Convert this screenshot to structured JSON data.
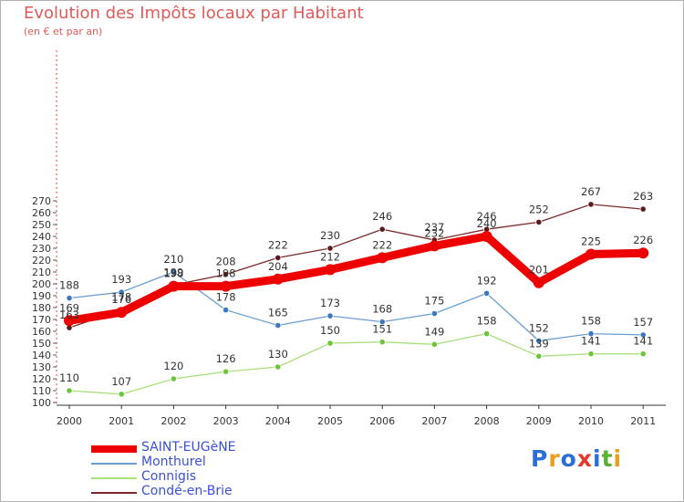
{
  "title": "Evolution des Impôts locaux par Habitant",
  "subtitle": "(en € et par an)",
  "logo": {
    "letters": [
      {
        "ch": "P",
        "color": "#2a6fd6"
      },
      {
        "ch": "r",
        "color": "#e8a020"
      },
      {
        "ch": "o",
        "color": "#2a6fd6"
      },
      {
        "ch": "x",
        "color": "#e23b2e"
      },
      {
        "ch": "i",
        "color": "#2a6fd6"
      },
      {
        "ch": "t",
        "color": "#5ab030"
      },
      {
        "ch": "i",
        "color": "#e8a020"
      }
    ]
  },
  "chart_data": {
    "type": "line",
    "title": "Evolution des Impôts locaux par Habitant",
    "subtitle": "(en € et par an)",
    "x": [
      "2000",
      "2001",
      "2002",
      "2003",
      "2004",
      "2005",
      "2006",
      "2007",
      "2008",
      "2009",
      "2010",
      "2011"
    ],
    "ylim": [
      100,
      270
    ],
    "yticks": [
      100,
      110,
      120,
      130,
      140,
      150,
      160,
      170,
      180,
      190,
      200,
      210,
      220,
      230,
      240,
      250,
      260,
      270
    ],
    "grid": false,
    "legend_position": "bottom-left",
    "series": [
      {
        "name": "Condé-en-Brie",
        "color": "#7a2a2a",
        "dot": "#5c1a1a",
        "values": [
          163,
          178,
          199,
          208,
          222,
          230,
          246,
          237,
          246,
          252,
          267,
          263
        ],
        "labels": [
          "163",
          "178",
          "199",
          "208",
          "222",
          "230",
          "246",
          "237",
          "246",
          "252",
          "267",
          "263"
        ]
      },
      {
        "name": "Connigis",
        "color": "#a8e07a",
        "dot": "#6cc63a",
        "values": [
          110,
          107,
          120,
          126,
          130,
          150,
          151,
          149,
          158,
          139,
          141,
          141
        ],
        "labels": [
          "110",
          "107",
          "120",
          "126",
          "130",
          "150",
          "151",
          "149",
          "158",
          "139",
          "141",
          "141"
        ]
      },
      {
        "name": "Monthurel",
        "color": "#6a9ed0",
        "dot": "#3a78c0",
        "values": [
          188,
          193,
          210,
          178,
          165,
          173,
          168,
          175,
          192,
          152,
          158,
          157
        ],
        "labels": [
          "188",
          "193",
          "210",
          "178",
          "165",
          "173",
          "168",
          "175",
          "192",
          "152",
          "158",
          "157"
        ]
      },
      {
        "name": "SAINT-EUGèNE",
        "color": "#ee0000",
        "dot": "#ee0000",
        "values": [
          169,
          176,
          198,
          198,
          204,
          212,
          222,
          232,
          240,
          201,
          225,
          226
        ],
        "labels": [
          "169",
          "176",
          "198",
          "198",
          "204",
          "212",
          "222",
          "232",
          "240",
          "201",
          "225",
          "226"
        ]
      }
    ],
    "legend": [
      "SAINT-EUGèNE",
      "Monthurel",
      "Connigis",
      "Condé-en-Brie"
    ]
  }
}
